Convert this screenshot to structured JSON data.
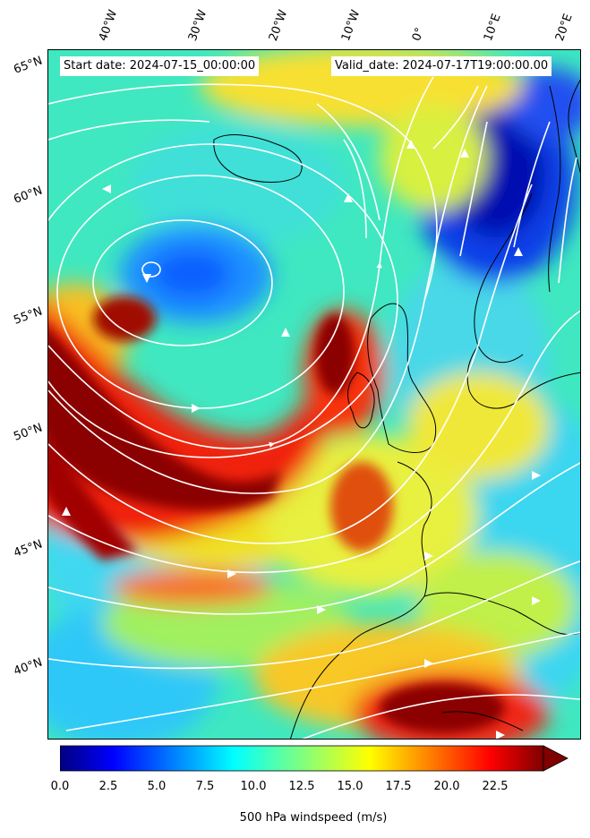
{
  "map": {
    "lon_labels": [
      "40°W",
      "30°W",
      "20°W",
      "10°W",
      "0°",
      "10°E",
      "20°E"
    ],
    "lat_labels": [
      "65°N",
      "60°N",
      "55°N",
      "50°N",
      "45°N",
      "40°N"
    ],
    "start_label": "Start date: 2024-07-15_00:00:00",
    "valid_label": "Valid_date: 2024-07-17T19:00:00.00",
    "field": "500 hPa windspeed",
    "streamline_color": "#ffffff",
    "coastline_color": "#000000"
  },
  "colorbar": {
    "label": "500 hPa windspeed (m/s)",
    "ticks": [
      "0.0",
      "2.5",
      "5.0",
      "7.5",
      "10.0",
      "12.5",
      "15.0",
      "17.5",
      "20.0",
      "22.5"
    ],
    "min": 0,
    "max": 25,
    "extend": "max",
    "colormap": "jet"
  }
}
